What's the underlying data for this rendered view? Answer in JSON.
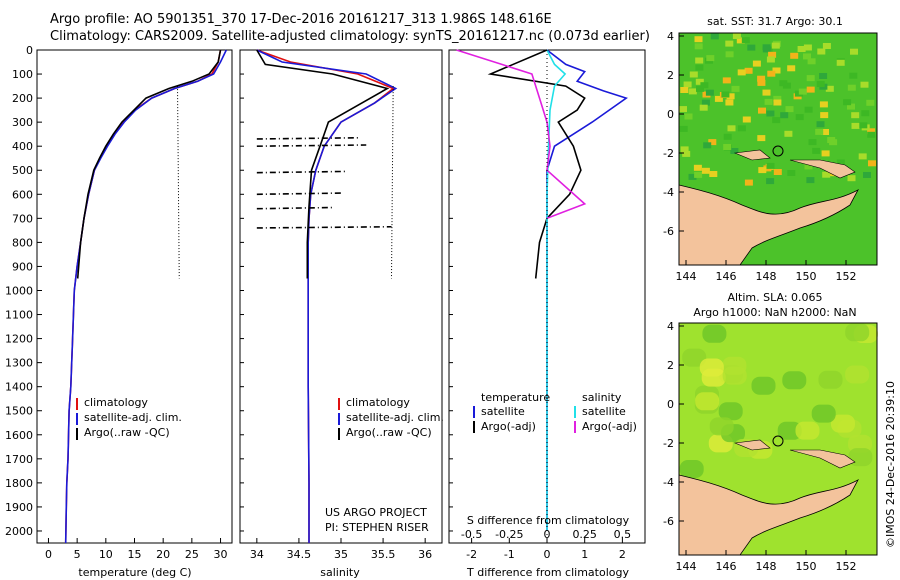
{
  "header": {
    "line1": "Argo profile: AO 5901351_370 17-Dec-2016 20161217_313 1.986S 148.616E",
    "line2": "Climatology: CARS2009. Satellite-adjusted climatology: synTS_20161217.nc (0.073d earlier)"
  },
  "colors": {
    "clim": "#e01010",
    "sat": "#1a1ad8",
    "argo": "#000000",
    "sal_sat": "#20e0e8",
    "sal_argo": "#e020e0",
    "land": "#f3c39c"
  },
  "depth_ticks": [
    0,
    100,
    200,
    300,
    400,
    500,
    600,
    700,
    800,
    900,
    1000,
    1100,
    1200,
    1300,
    1400,
    1500,
    1600,
    1700,
    1800,
    1900,
    2000
  ],
  "panels": {
    "temperature": {
      "xlabel": "temperature (deg C)",
      "ticks": [
        "0",
        "5",
        "10",
        "15",
        "20",
        "25",
        "30"
      ],
      "legend": [
        "climatology",
        "satellite-adj. clim.",
        "Argo(..raw -QC)"
      ]
    },
    "salinity": {
      "xlabel": "salinity",
      "ticks": [
        "34",
        "34.5",
        "35",
        "35.5",
        "36"
      ],
      "legend": [
        "climatology",
        "satellite-adj. clim.",
        "Argo(..raw -QC)"
      ],
      "credit1": "US ARGO PROJECT",
      "credit2": "PI: STEPHEN RISER"
    },
    "difference": {
      "xlabel_top": "S difference from climatology",
      "xlabel": "T difference from climatology",
      "s_ticks": [
        "-0.5",
        "-0.25",
        "0",
        "0.25",
        "0.5"
      ],
      "t_ticks": [
        "-2",
        "-1",
        "0",
        "1",
        "2"
      ],
      "legend_head_t": "temperature",
      "legend_head_s": "salinity",
      "legend_t": [
        "satellite",
        "Argo(-adj)"
      ],
      "legend_s": [
        "satellite",
        "Argo(-adj)"
      ]
    }
  },
  "maps": {
    "sst_title": "sat. SST: 31.7  Argo: 30.1",
    "sla_title1": "Altim. SLA: 0.065",
    "sla_title2": "Argo h1000: NaN  h2000: NaN",
    "x_ticks": [
      "144",
      "146",
      "148",
      "150",
      "152"
    ],
    "y_ticks": [
      "4",
      "2",
      "0",
      "-2",
      "-4",
      "-6"
    ],
    "stamp": "©IMOS 24-Dec-2016 20:39:10"
  },
  "chart_data": [
    {
      "type": "line",
      "title": "",
      "xlabel": "temperature (deg C)",
      "ylabel": "",
      "xlim": [
        -2,
        32
      ],
      "ylim": [
        2050,
        0
      ],
      "series": [
        {
          "name": "climatology",
          "x": [
            30.0,
            29.6,
            28.5,
            26.0,
            22.0,
            18.0,
            15.0,
            13.0,
            11.5,
            10.2,
            9.0,
            8.0,
            7.0,
            6.2,
            5.6,
            5.0,
            4.5,
            4.2,
            3.9,
            3.6,
            3.4,
            3.2,
            3.1,
            3.0
          ],
          "y": [
            0,
            50,
            100,
            130,
            160,
            200,
            250,
            300,
            350,
            400,
            450,
            500,
            600,
            700,
            800,
            900,
            1000,
            1200,
            1400,
            1500,
            1700,
            1800,
            1900,
            2050
          ]
        },
        {
          "name": "satellite-adj. clim.",
          "x": [
            31.0,
            30.0,
            28.8,
            26.0,
            22.0,
            18.0,
            15.2,
            13.2,
            11.6,
            10.3,
            9.1,
            8.0,
            7.0,
            6.2,
            5.6,
            5.0,
            4.5,
            4.2,
            3.9,
            3.6,
            3.4,
            3.2,
            3.1,
            3.0
          ],
          "y": [
            0,
            50,
            100,
            130,
            160,
            200,
            250,
            300,
            350,
            400,
            450,
            500,
            600,
            700,
            800,
            900,
            1000,
            1200,
            1400,
            1500,
            1700,
            1800,
            1900,
            2050
          ]
        },
        {
          "name": "Argo(..raw -QC)",
          "x": [
            30.0,
            29.6,
            28.0,
            25.0,
            21.0,
            17.0,
            14.5,
            12.8,
            11.3,
            10.0,
            8.9,
            7.9,
            6.9,
            6.2,
            5.6,
            5.1
          ],
          "y": [
            0,
            50,
            100,
            130,
            160,
            200,
            260,
            300,
            350,
            400,
            450,
            500,
            600,
            700,
            800,
            950
          ]
        }
      ]
    },
    {
      "type": "line",
      "title": "",
      "xlabel": "salinity",
      "ylabel": "",
      "xlim": [
        33.8,
        36.2
      ],
      "ylim": [
        2050,
        0
      ],
      "series": [
        {
          "name": "climatology",
          "x": [
            34.0,
            34.4,
            35.2,
            35.62,
            35.4,
            35.0,
            34.8,
            34.7,
            34.64,
            34.62,
            34.61,
            34.61,
            34.61,
            34.62,
            34.62
          ],
          "y": [
            0,
            50,
            100,
            160,
            220,
            300,
            400,
            500,
            600,
            700,
            800,
            1000,
            1400,
            1800,
            2050
          ]
        },
        {
          "name": "satellite-adj. clim.",
          "x": [
            34.0,
            34.3,
            35.3,
            35.65,
            35.4,
            35.0,
            34.8,
            34.7,
            34.64,
            34.62,
            34.61,
            34.61,
            34.61,
            34.62,
            34.62
          ],
          "y": [
            0,
            50,
            100,
            160,
            220,
            300,
            400,
            500,
            600,
            700,
            800,
            1000,
            1400,
            1800,
            2050
          ]
        },
        {
          "name": "Argo(..raw -QC)",
          "x": [
            34.0,
            34.1,
            34.9,
            35.55,
            35.2,
            34.85,
            34.75,
            34.65,
            34.62,
            34.6,
            34.6
          ],
          "y": [
            0,
            60,
            100,
            160,
            230,
            300,
            400,
            500,
            650,
            800,
            950
          ]
        }
      ]
    },
    {
      "type": "line",
      "title": "",
      "xlabel": "T difference from climatology",
      "ylabel": "",
      "xlim": [
        -2.6,
        2.6
      ],
      "ylim": [
        2050,
        0
      ],
      "series": [
        {
          "name": "satellite",
          "x": [
            0,
            0.5,
            1.0,
            0.8,
            1.5,
            2.1,
            1.2,
            0.2,
            0.0,
            0.0,
            0.0,
            0.0,
            0.0
          ],
          "y": [
            0,
            60,
            90,
            130,
            170,
            200,
            300,
            400,
            500,
            700,
            1000,
            1500,
            2000
          ]
        },
        {
          "name": "Argo(-adj)",
          "x": [
            0,
            -1.5,
            0.5,
            1.0,
            0.8,
            0.3,
            0.7,
            0.9,
            0.6,
            0.0,
            -0.2,
            -0.3
          ],
          "y": [
            0,
            100,
            150,
            200,
            250,
            300,
            400,
            500,
            600,
            700,
            800,
            950
          ]
        }
      ]
    },
    {
      "type": "line",
      "title": "",
      "xlabel": "S difference from climatology",
      "ylabel": "",
      "xlim": [
        -0.65,
        0.65
      ],
      "ylim": [
        2050,
        0
      ],
      "series": [
        {
          "name": "satellite",
          "x": [
            0,
            0.05,
            0.12,
            0.05,
            0.02,
            0.01,
            0.0,
            0.0,
            0.0,
            0.0,
            0.0
          ],
          "y": [
            0,
            60,
            100,
            150,
            250,
            400,
            600,
            800,
            1200,
            1600,
            2000
          ]
        },
        {
          "name": "Argo(-adj)",
          "x": [
            -0.6,
            -0.3,
            -0.1,
            -0.05,
            0.0,
            0.02,
            0.0,
            0.25,
            0.0
          ],
          "y": [
            0,
            60,
            100,
            200,
            300,
            400,
            500,
            640,
            700
          ]
        }
      ]
    }
  ]
}
